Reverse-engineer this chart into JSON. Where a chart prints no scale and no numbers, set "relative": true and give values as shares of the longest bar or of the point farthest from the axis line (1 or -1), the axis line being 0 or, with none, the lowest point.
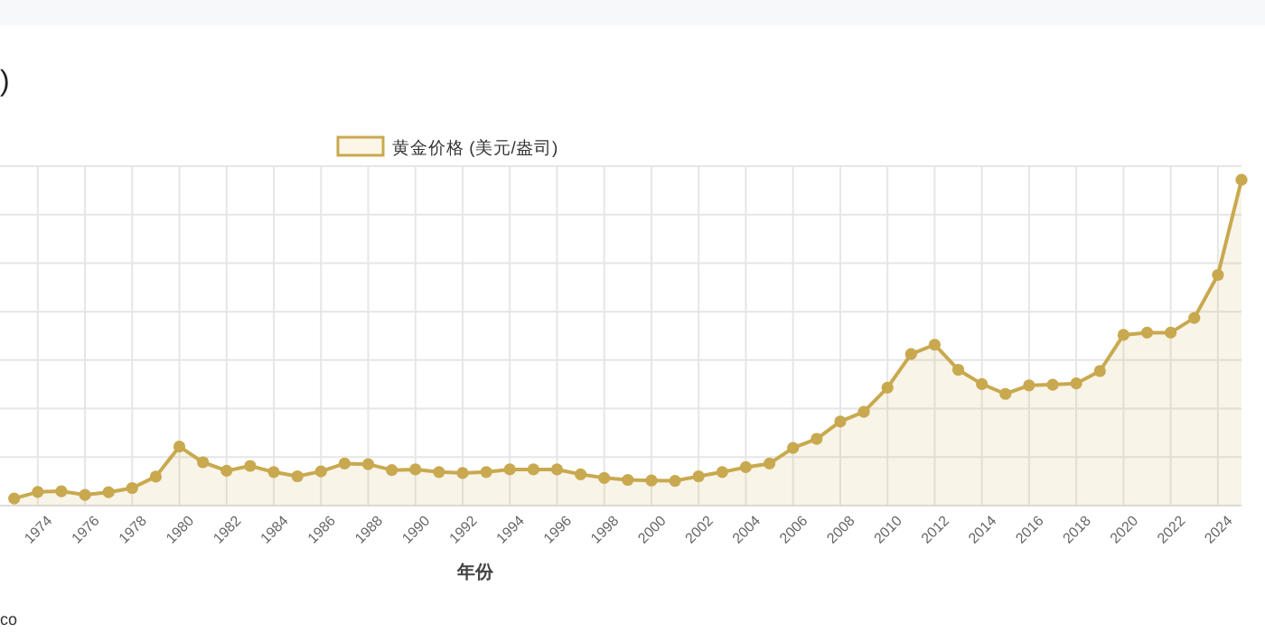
{
  "chart_data": {
    "type": "area",
    "title": ")",
    "xlabel": "年份",
    "annotations": [
      "co"
    ],
    "relative": true,
    "legend": "top",
    "grid": true,
    "marker": "circle",
    "line_style": "solid",
    "x": [
      1973,
      1974,
      1975,
      1976,
      1977,
      1978,
      1979,
      1980,
      1981,
      1982,
      1983,
      1984,
      1985,
      1986,
      1987,
      1988,
      1989,
      1990,
      1991,
      1992,
      1993,
      1994,
      1995,
      1996,
      1997,
      1998,
      1999,
      2000,
      2001,
      2002,
      2003,
      2004,
      2005,
      2006,
      2007,
      2008,
      2009,
      2010,
      2011,
      2012,
      2013,
      2014,
      2015,
      2016,
      2017,
      2018,
      2019,
      2020,
      2021,
      2022,
      2023,
      2024,
      2025
    ],
    "xlim": [
      1972.4,
      2025
    ],
    "xticks": [
      1974,
      1976,
      1978,
      1980,
      1982,
      1984,
      1986,
      1988,
      1990,
      1992,
      1994,
      1996,
      1998,
      2000,
      2002,
      2004,
      2006,
      2008,
      2010,
      2012,
      2014,
      2016,
      2018,
      2020,
      2022,
      2024
    ],
    "series": [
      {
        "name": "黄金价格 (美元/盎司)",
        "color": "#c9a94f",
        "values": [
          0.022,
          0.042,
          0.044,
          0.033,
          0.041,
          0.054,
          0.089,
          0.181,
          0.133,
          0.107,
          0.122,
          0.103,
          0.09,
          0.105,
          0.129,
          0.127,
          0.109,
          0.111,
          0.103,
          0.1,
          0.103,
          0.111,
          0.111,
          0.111,
          0.096,
          0.085,
          0.079,
          0.077,
          0.076,
          0.09,
          0.103,
          0.118,
          0.129,
          0.177,
          0.205,
          0.258,
          0.288,
          0.362,
          0.465,
          0.494,
          0.417,
          0.373,
          0.343,
          0.369,
          0.371,
          0.375,
          0.413,
          0.524,
          0.531,
          0.531,
          0.576,
          0.708,
          1
        ]
      }
    ]
  }
}
